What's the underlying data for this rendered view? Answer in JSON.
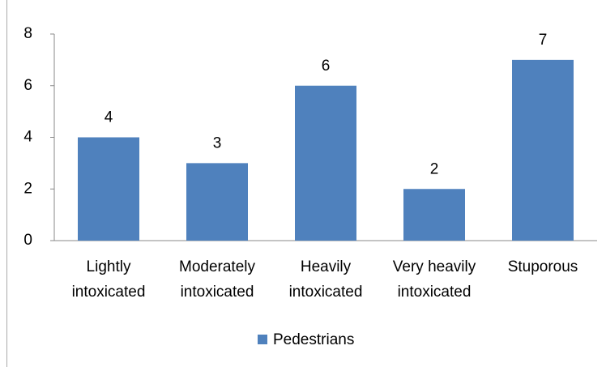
{
  "chart_data": {
    "type": "bar",
    "categories": [
      "Lightly intoxicated",
      "Moderately intoxicated",
      "Heavily intoxicated",
      "Very heavily intoxicated",
      "Stuporous"
    ],
    "series": [
      {
        "name": "Pedestrians",
        "color": "#4f81bd",
        "values": [
          4,
          3,
          6,
          2,
          7
        ]
      }
    ],
    "ylim": [
      0,
      8
    ],
    "yticks": [
      0,
      2,
      4,
      6,
      8
    ],
    "grid": false,
    "legend": "bottom"
  }
}
